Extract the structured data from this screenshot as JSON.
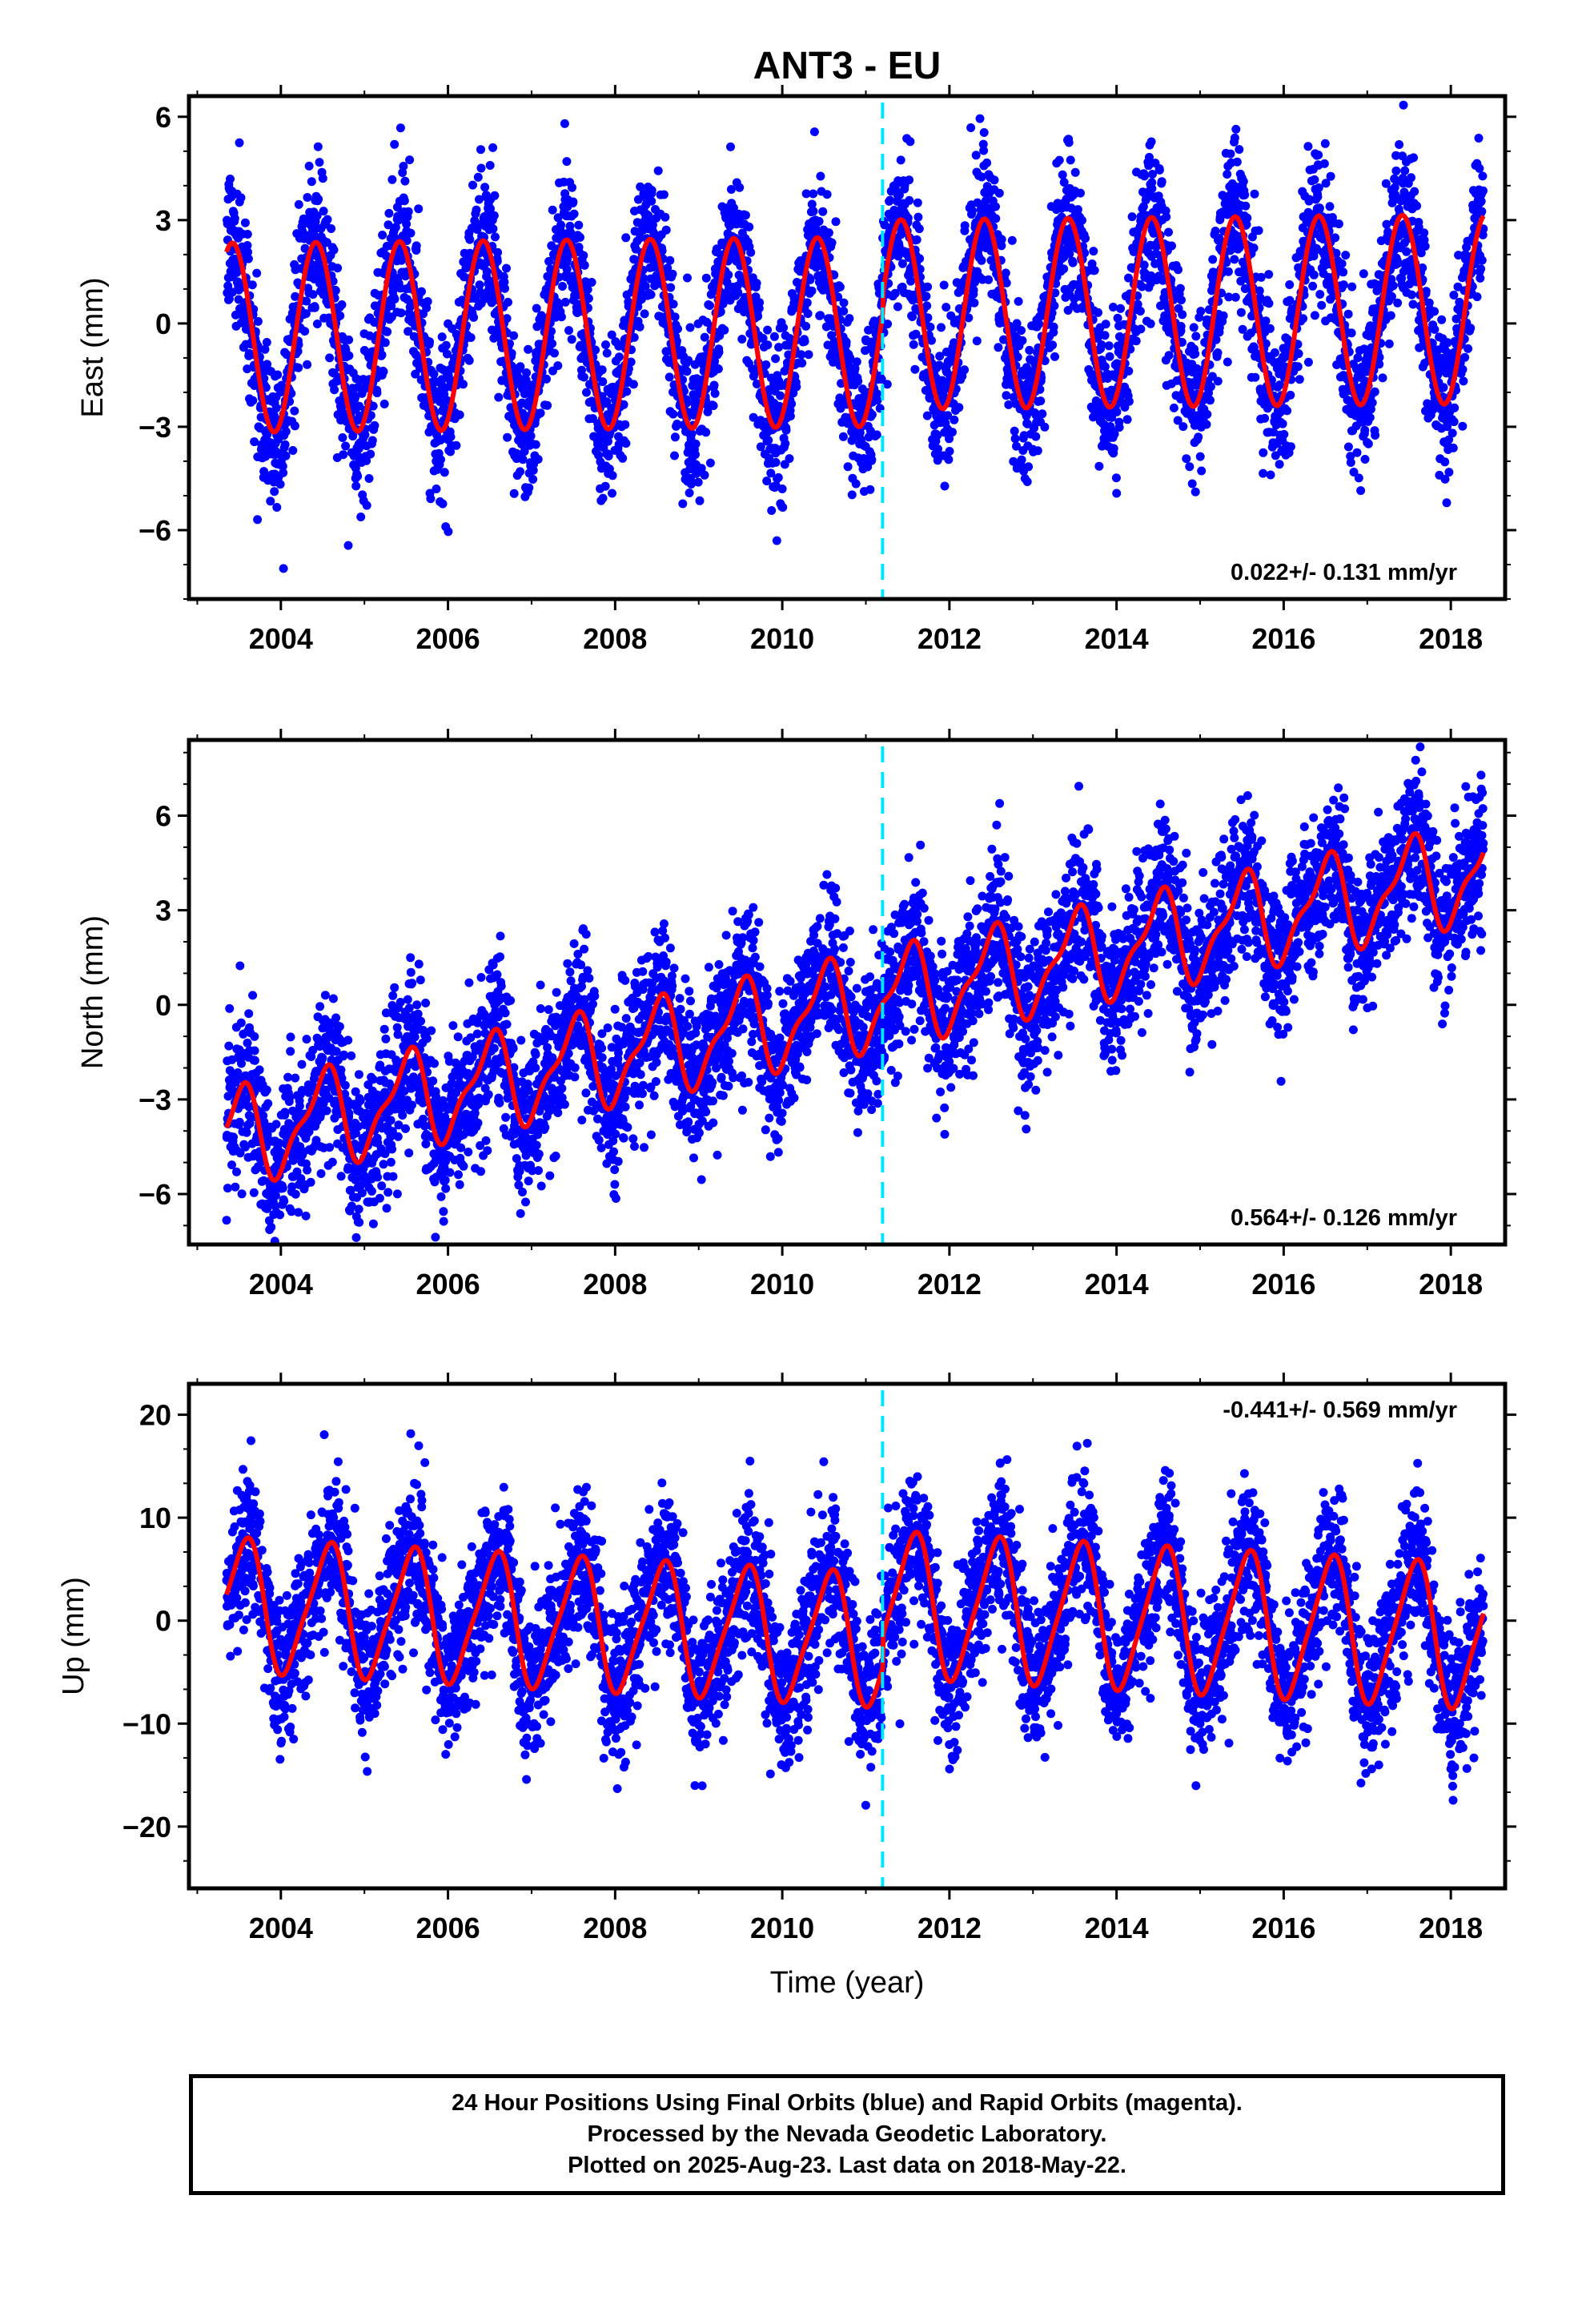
{
  "chart_data": {
    "type": "scatter",
    "title": "ANT3 - EU",
    "xlabel": "Time (year)",
    "x_ticks": [
      "2004",
      "2006",
      "2008",
      "2010",
      "2012",
      "2014",
      "2016",
      "2018"
    ],
    "xlim": [
      2002.9,
      2018.65
    ],
    "offset_line_year": 2011.2,
    "colors": {
      "points": "#0000ff",
      "model": "#ff0000",
      "offset_line": "#00e5ff"
    },
    "data_start": 2003.35,
    "data_end": 2018.39,
    "panels": [
      {
        "name": "east",
        "ylabel": "East (mm)",
        "ylim": [
          -8.0,
          6.6
        ],
        "y_ticks": [
          "6",
          "3",
          "0",
          "-3",
          "-6"
        ],
        "rate_text": "0.022+/- 0.131 mm/yr",
        "rate_position": "bottom-right",
        "model": {
          "trend": 0.022,
          "amplitude_before": 2.75,
          "amplitude_after": 2.75,
          "phase_year": 0.42,
          "semiannual": 0.0,
          "offset_at_break": 0.5
        },
        "noise_sd": 1.1
      },
      {
        "name": "north",
        "ylabel": "North (mm)",
        "ylim": [
          -7.6,
          8.4
        ],
        "y_ticks": [
          "6",
          "3",
          "0",
          "-3",
          "-6"
        ],
        "rate_text": "0.564+/- 0.126 mm/yr",
        "rate_position": "bottom-right",
        "model": {
          "trend": 0.564,
          "amplitude_before": 1.4,
          "amplitude_after": 1.4,
          "phase_year": 0.5,
          "semiannual": 0.5,
          "offset_at_break": 0.0
        },
        "noise_sd": 1.2
      },
      {
        "name": "up",
        "ylabel": "Up (mm)",
        "ylim": [
          -26.0,
          23.0
        ],
        "y_ticks": [
          "20",
          "10",
          "0",
          "-10",
          "-20"
        ],
        "rate_text": "-0.441+/- 0.569 mm/yr",
        "rate_position": "top-right",
        "model": {
          "trend": -0.441,
          "amplitude_before": 6.2,
          "amplitude_after": 6.8,
          "phase_year": 0.56,
          "semiannual": 1.2,
          "offset_at_break": 3.5
        },
        "noise_sd": 3.6
      }
    ]
  },
  "caption": {
    "line1": "24 Hour Positions Using Final Orbits (blue) and Rapid Orbits (magenta).",
    "line2": "Processed by the Nevada Geodetic Laboratory.",
    "line3": "Plotted on 2025-Aug-23. Last data on 2018-May-22."
  }
}
